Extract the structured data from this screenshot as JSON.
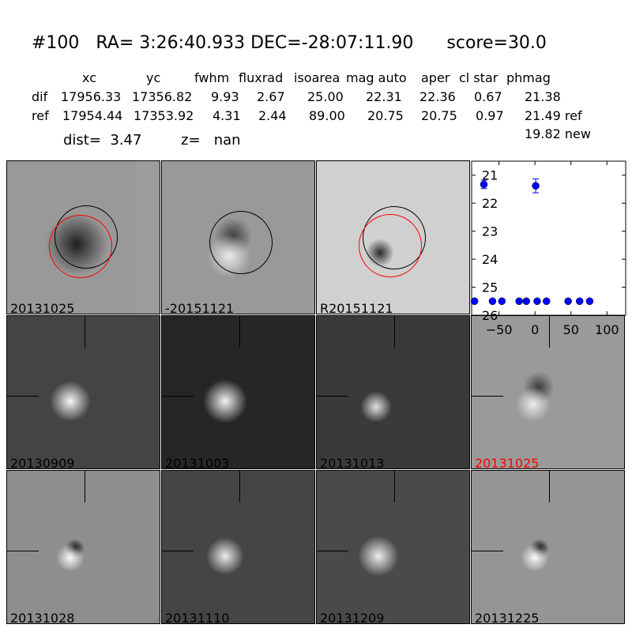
{
  "title": "#100   RA= 3:26:40.933 DEC=-28:07:11.90      score=30.0",
  "table": {
    "headers": [
      "xc",
      "yc",
      "fwhm",
      "fluxrad",
      "isoarea",
      "mag auto",
      "aper",
      "cl star",
      "phmag"
    ],
    "dif": {
      "label": "dif",
      "values": [
        "17956.33",
        "17356.82",
        "9.93",
        "2.67",
        "25.00",
        "22.31",
        "22.36",
        "0.67",
        "21.38"
      ]
    },
    "ref": {
      "label": "ref",
      "values": [
        "17954.44",
        "17353.92",
        "4.31",
        "2.44",
        "89.00",
        "20.75",
        "20.75",
        "0.97",
        "21.49 ref"
      ]
    },
    "new": "19.82 new"
  },
  "dist": "dist=  3.47",
  "z": "z=   nan",
  "panels": [
    {
      "label": "20131025",
      "color": "#000000"
    },
    {
      "label": "-20151121",
      "color": "#000000"
    },
    {
      "label": "R20151121",
      "color": "#000000"
    },
    {
      "label": "20130909",
      "color": "#000000"
    },
    {
      "label": "20131003",
      "color": "#000000"
    },
    {
      "label": "20131013",
      "color": "#000000"
    },
    {
      "label": "20131025",
      "color": "#ff0000"
    },
    {
      "label": "20131028",
      "color": "#000000"
    },
    {
      "label": "20131110",
      "color": "#000000"
    },
    {
      "label": "20131209",
      "color": "#000000"
    },
    {
      "label": "20131225",
      "color": "#000000"
    }
  ],
  "chart_data": {
    "type": "scatter",
    "marker_color": "#0000ff",
    "xlim": [
      -88,
      126
    ],
    "ylim": [
      26,
      20.5
    ],
    "y_inverted": true,
    "xticks": [
      -50,
      0,
      50,
      100
    ],
    "yticks": [
      21,
      22,
      23,
      24,
      25,
      26
    ],
    "points": [
      {
        "x": -71,
        "y": 21.33,
        "err": 0.15
      },
      {
        "x": 1,
        "y": 21.38,
        "err": 0.25
      },
      {
        "x": -84,
        "y": 25.5,
        "err": 0.05
      },
      {
        "x": -59,
        "y": 25.5,
        "err": 0.05
      },
      {
        "x": -46,
        "y": 25.5,
        "err": 0.05
      },
      {
        "x": -22,
        "y": 25.5,
        "err": 0.05
      },
      {
        "x": -12,
        "y": 25.5,
        "err": 0.05
      },
      {
        "x": 3,
        "y": 25.5,
        "err": 0.05
      },
      {
        "x": 16,
        "y": 25.5,
        "err": 0.05
      },
      {
        "x": 46,
        "y": 25.5,
        "err": 0.05
      },
      {
        "x": 62,
        "y": 25.5,
        "err": 0.05
      },
      {
        "x": 76,
        "y": 25.5,
        "err": 0.05
      }
    ]
  }
}
